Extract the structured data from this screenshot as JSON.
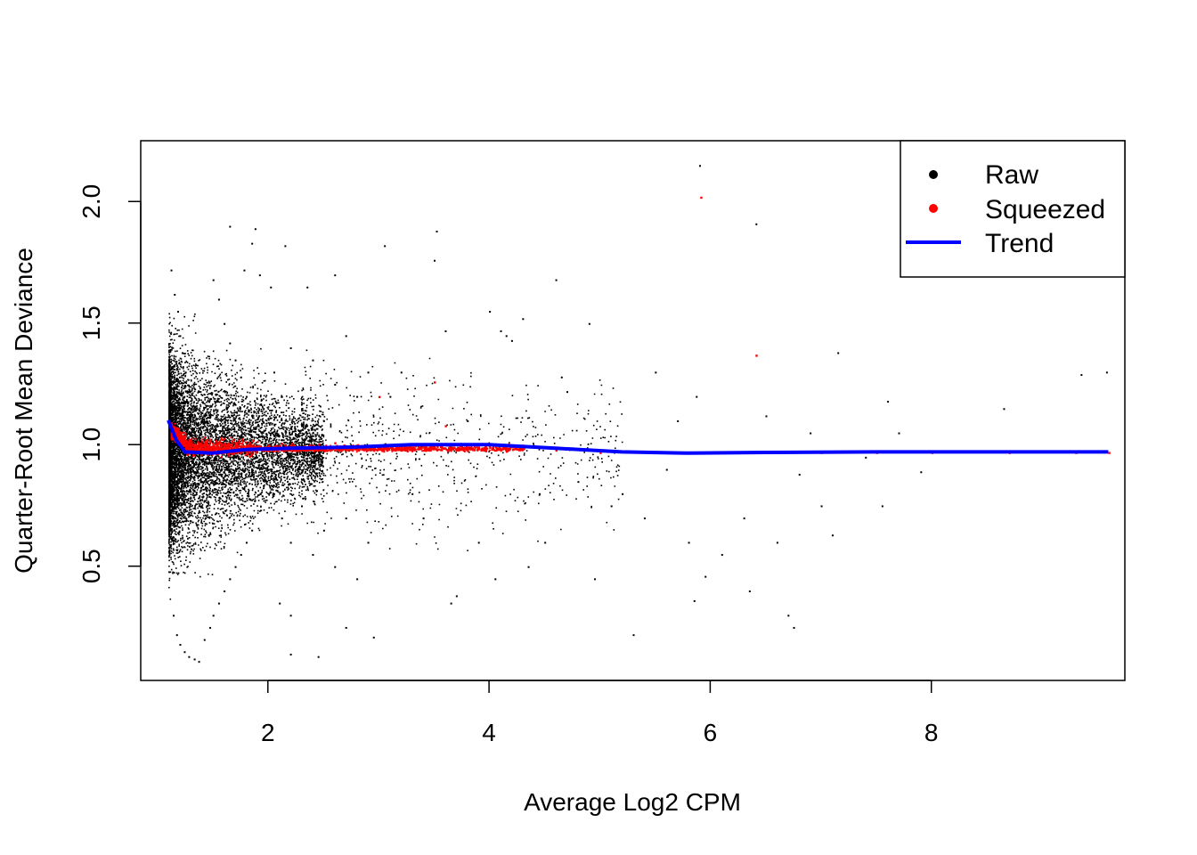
{
  "chart_data": {
    "type": "scatter",
    "title": "",
    "xlabel": "Average Log2 CPM",
    "ylabel": "Quarter-Root Mean Deviance",
    "xlim": [
      0.85,
      9.75
    ],
    "ylim": [
      0.03,
      2.25
    ],
    "x_ticks": [
      {
        "value": 2,
        "label": "2"
      },
      {
        "value": 4,
        "label": "4"
      },
      {
        "value": 6,
        "label": "6"
      },
      {
        "value": 8,
        "label": "8"
      }
    ],
    "y_ticks": [
      {
        "value": 0.5,
        "label": "0.5"
      },
      {
        "value": 1.0,
        "label": "1.0"
      },
      {
        "value": 1.5,
        "label": "1.5"
      },
      {
        "value": 2.0,
        "label": "2.0"
      }
    ],
    "grid": false,
    "legend": {
      "placement": "top-right",
      "entries": [
        {
          "label": "Raw",
          "symbol": "point",
          "color": "#000000"
        },
        {
          "label": "Squeezed",
          "symbol": "point",
          "color": "#FF0000"
        },
        {
          "label": "Trend",
          "symbol": "line",
          "color": "#0000FF"
        }
      ]
    },
    "series": [
      {
        "name": "Raw",
        "color": "#000000",
        "points": [
          [
            1.12,
            1.72
          ],
          [
            1.15,
            1.62
          ],
          [
            1.18,
            1.55
          ],
          [
            1.2,
            1.45
          ],
          [
            1.22,
            1.38
          ],
          [
            1.25,
            1.3
          ],
          [
            1.28,
            1.22
          ],
          [
            1.3,
            1.15
          ],
          [
            1.32,
            1.1
          ],
          [
            1.14,
            0.3
          ],
          [
            1.17,
            0.22
          ],
          [
            1.2,
            0.18
          ],
          [
            1.24,
            0.15
          ],
          [
            1.28,
            0.13
          ],
          [
            1.33,
            0.12
          ],
          [
            1.37,
            0.11
          ],
          [
            1.42,
            0.2
          ],
          [
            1.47,
            0.25
          ],
          [
            1.5,
            1.68
          ],
          [
            1.55,
            1.6
          ],
          [
            1.6,
            1.5
          ],
          [
            1.65,
            1.42
          ],
          [
            1.7,
            1.35
          ],
          [
            1.75,
            1.28
          ],
          [
            1.8,
            1.2
          ],
          [
            1.85,
            1.12
          ],
          [
            1.5,
            0.3
          ],
          [
            1.55,
            0.35
          ],
          [
            1.6,
            0.4
          ],
          [
            1.65,
            0.45
          ],
          [
            1.7,
            0.5
          ],
          [
            1.75,
            0.55
          ],
          [
            1.8,
            0.6
          ],
          [
            1.85,
            0.65
          ],
          [
            1.65,
            1.9
          ],
          [
            1.78,
            1.72
          ],
          [
            1.85,
            1.83
          ],
          [
            1.88,
            1.89
          ],
          [
            1.92,
            1.7
          ],
          [
            2.02,
            1.65
          ],
          [
            2.15,
            1.82
          ],
          [
            2.35,
            1.65
          ],
          [
            2.6,
            1.7
          ],
          [
            2.05,
            1.3
          ],
          [
            2.12,
            1.2
          ],
          [
            2.2,
            1.4
          ],
          [
            2.3,
            1.15
          ],
          [
            2.4,
            1.35
          ],
          [
            2.5,
            1.1
          ],
          [
            2.6,
            1.25
          ],
          [
            2.7,
            1.45
          ],
          [
            2.8,
            1.2
          ],
          [
            2.9,
            1.3
          ],
          [
            2.05,
            0.8
          ],
          [
            2.12,
            0.7
          ],
          [
            2.2,
            0.6
          ],
          [
            2.3,
            0.75
          ],
          [
            2.4,
            0.55
          ],
          [
            2.5,
            0.65
          ],
          [
            2.6,
            0.5
          ],
          [
            2.7,
            0.7
          ],
          [
            2.8,
            0.45
          ],
          [
            2.9,
            0.6
          ],
          [
            2.1,
            0.35
          ],
          [
            2.2,
            0.3
          ],
          [
            2.45,
            0.13
          ],
          [
            2.7,
            0.25
          ],
          [
            2.95,
            0.21
          ],
          [
            2.2,
            0.14
          ],
          [
            3.05,
            1.82
          ],
          [
            3.1,
            1.2
          ],
          [
            3.2,
            1.3
          ],
          [
            3.3,
            0.8
          ],
          [
            3.4,
            0.7
          ],
          [
            3.5,
            1.76
          ],
          [
            3.52,
            1.88
          ],
          [
            3.6,
            1.47
          ],
          [
            3.7,
            0.38
          ],
          [
            3.65,
            0.35
          ],
          [
            3.8,
            1.1
          ],
          [
            3.9,
            0.6
          ],
          [
            4.0,
            1.55
          ],
          [
            4.05,
            0.45
          ],
          [
            4.1,
            1.47
          ],
          [
            4.15,
            1.45
          ],
          [
            4.2,
            1.43
          ],
          [
            4.3,
            1.52
          ],
          [
            4.35,
            0.5
          ],
          [
            4.45,
            0.8
          ],
          [
            4.5,
            0.6
          ],
          [
            4.6,
            1.68
          ],
          [
            4.65,
            1.28
          ],
          [
            4.7,
            1.22
          ],
          [
            4.8,
            0.85
          ],
          [
            4.9,
            1.5
          ],
          [
            4.95,
            0.45
          ],
          [
            5.1,
            0.75
          ],
          [
            5.2,
            0.8
          ],
          [
            5.3,
            0.22
          ],
          [
            5.4,
            0.7
          ],
          [
            5.5,
            1.3
          ],
          [
            5.6,
            0.9
          ],
          [
            5.7,
            1.1
          ],
          [
            5.8,
            0.6
          ],
          [
            5.87,
            1.2
          ],
          [
            5.9,
            2.15
          ],
          [
            5.85,
            0.36
          ],
          [
            5.95,
            0.46
          ],
          [
            6.1,
            0.55
          ],
          [
            6.3,
            0.7
          ],
          [
            6.35,
            0.4
          ],
          [
            6.41,
            1.91
          ],
          [
            6.5,
            1.12
          ],
          [
            6.6,
            0.6
          ],
          [
            6.7,
            0.3
          ],
          [
            6.75,
            0.25
          ],
          [
            6.8,
            0.88
          ],
          [
            6.9,
            1.05
          ],
          [
            7.0,
            0.75
          ],
          [
            7.1,
            0.63
          ],
          [
            7.15,
            1.38
          ],
          [
            7.4,
            0.95
          ],
          [
            7.55,
            0.75
          ],
          [
            7.6,
            1.18
          ],
          [
            7.7,
            1.05
          ],
          [
            7.9,
            0.89
          ],
          [
            8.65,
            1.15
          ],
          [
            9.35,
            1.29
          ],
          [
            9.58,
            1.3
          ]
        ]
      },
      {
        "name": "Squeezed",
        "color": "#FF0000",
        "points": [
          [
            1.15,
            1.05
          ],
          [
            1.2,
            1.03
          ],
          [
            1.25,
            1.02
          ],
          [
            1.3,
            1.01
          ],
          [
            1.4,
            1.0
          ],
          [
            1.5,
            1.0
          ],
          [
            1.6,
            1.0
          ],
          [
            1.7,
            1.0
          ],
          [
            1.8,
            1.0
          ],
          [
            1.9,
            0.99
          ],
          [
            2.0,
            1.0
          ],
          [
            2.2,
            1.0
          ],
          [
            2.4,
            1.0
          ],
          [
            2.6,
            1.01
          ],
          [
            2.8,
            1.0
          ],
          [
            3.0,
            1.0
          ],
          [
            3.2,
            1.0
          ],
          [
            3.5,
            1.26
          ],
          [
            3.0,
            1.2
          ],
          [
            3.6,
            1.08
          ],
          [
            4.0,
            1.0
          ],
          [
            4.3,
            1.0
          ],
          [
            4.6,
            0.98
          ],
          [
            5.0,
            0.97
          ],
          [
            5.5,
            0.97
          ],
          [
            5.91,
            2.02
          ],
          [
            6.0,
            0.97
          ],
          [
            6.41,
            1.37
          ],
          [
            6.6,
            0.97
          ],
          [
            7.0,
            0.97
          ],
          [
            7.5,
            0.97
          ],
          [
            8.0,
            0.97
          ],
          [
            8.7,
            0.97
          ],
          [
            9.3,
            0.97
          ],
          [
            9.6,
            0.97
          ]
        ]
      },
      {
        "name": "Trend",
        "color": "#0000FF",
        "points": [
          [
            1.1,
            1.1
          ],
          [
            1.17,
            1.02
          ],
          [
            1.25,
            0.97
          ],
          [
            1.5,
            0.965
          ],
          [
            1.8,
            0.98
          ],
          [
            2.2,
            0.985
          ],
          [
            2.8,
            0.99
          ],
          [
            3.3,
            1.0
          ],
          [
            4.0,
            1.0
          ],
          [
            4.6,
            0.985
          ],
          [
            5.2,
            0.97
          ],
          [
            5.8,
            0.965
          ],
          [
            6.5,
            0.968
          ],
          [
            7.5,
            0.97
          ],
          [
            8.5,
            0.97
          ],
          [
            9.6,
            0.97
          ]
        ]
      }
    ]
  }
}
